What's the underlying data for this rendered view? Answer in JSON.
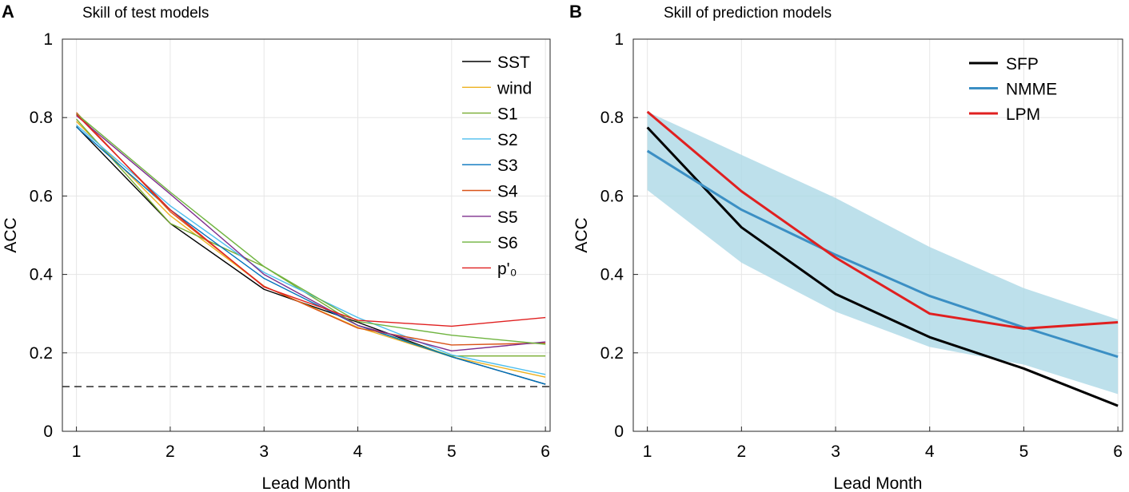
{
  "chart_data": [
    {
      "type": "line",
      "panel": "A",
      "title": "Skill of test models",
      "xlabel": "Lead Month",
      "ylabel": "ACC",
      "xlim": [
        0.85,
        6.05
      ],
      "ylim": [
        0,
        1
      ],
      "x": [
        1,
        2,
        3,
        4,
        5,
        6
      ],
      "xticks": [
        "1",
        "2",
        "3",
        "4",
        "5",
        "6"
      ],
      "yticks": [
        "0",
        "0.2",
        "0.4",
        "0.6",
        "0.8",
        "1"
      ],
      "grid": true,
      "legend": "top-right",
      "reference_line": {
        "y": 0.114,
        "style": "dashed"
      },
      "series": [
        {
          "name": "SST",
          "color": "#000000",
          "values": [
            0.777,
            0.53,
            0.362,
            0.278,
            0.19,
            0.12
          ]
        },
        {
          "name": "wind",
          "color": "#edb120",
          "values": [
            0.79,
            0.55,
            0.37,
            0.265,
            0.19,
            0.138
          ]
        },
        {
          "name": "S1",
          "color": "#77ac30",
          "values": [
            0.796,
            0.53,
            0.42,
            0.27,
            0.192,
            0.192
          ]
        },
        {
          "name": "S2",
          "color": "#4dbeee",
          "values": [
            0.781,
            0.575,
            0.405,
            0.29,
            0.195,
            0.145
          ]
        },
        {
          "name": "S3",
          "color": "#0072bd",
          "values": [
            0.776,
            0.565,
            0.39,
            0.27,
            0.19,
            0.12
          ]
        },
        {
          "name": "S4",
          "color": "#d95319",
          "values": [
            0.813,
            0.56,
            0.37,
            0.263,
            0.22,
            0.225
          ]
        },
        {
          "name": "S5",
          "color": "#7e2f8e",
          "values": [
            0.805,
            0.605,
            0.4,
            0.27,
            0.205,
            0.228
          ]
        },
        {
          "name": "S6",
          "color": "#6fb43f",
          "values": [
            0.81,
            0.61,
            0.42,
            0.28,
            0.245,
            0.222
          ]
        },
        {
          "name": "p'₀",
          "color": "#e02020",
          "values": [
            0.808,
            0.565,
            0.368,
            0.283,
            0.268,
            0.29
          ]
        }
      ]
    },
    {
      "type": "line",
      "panel": "B",
      "title": "Skill of prediction models",
      "xlabel": "Lead Month",
      "ylabel": "ACC",
      "xlim": [
        0.85,
        6.05
      ],
      "ylim": [
        0,
        1
      ],
      "x": [
        1,
        2,
        3,
        4,
        5,
        6
      ],
      "xticks": [
        "1",
        "2",
        "3",
        "4",
        "5",
        "6"
      ],
      "yticks": [
        "0",
        "0.2",
        "0.4",
        "0.6",
        "0.8",
        "1"
      ],
      "grid": true,
      "legend": "top-right",
      "band": {
        "color": "#add8e6",
        "upper": [
          0.815,
          0.705,
          0.595,
          0.47,
          0.365,
          0.285
        ],
        "lower": [
          0.615,
          0.43,
          0.305,
          0.215,
          0.17,
          0.095
        ]
      },
      "series": [
        {
          "name": "SFP",
          "color": "#000000",
          "values": [
            0.775,
            0.52,
            0.35,
            0.24,
            0.16,
            0.065
          ]
        },
        {
          "name": "NMME",
          "color": "#3b8fc4",
          "values": [
            0.715,
            0.565,
            0.45,
            0.345,
            0.265,
            0.19
          ]
        },
        {
          "name": "LPM",
          "color": "#e02020",
          "values": [
            0.815,
            0.612,
            0.443,
            0.3,
            0.262,
            0.278
          ]
        }
      ]
    }
  ]
}
